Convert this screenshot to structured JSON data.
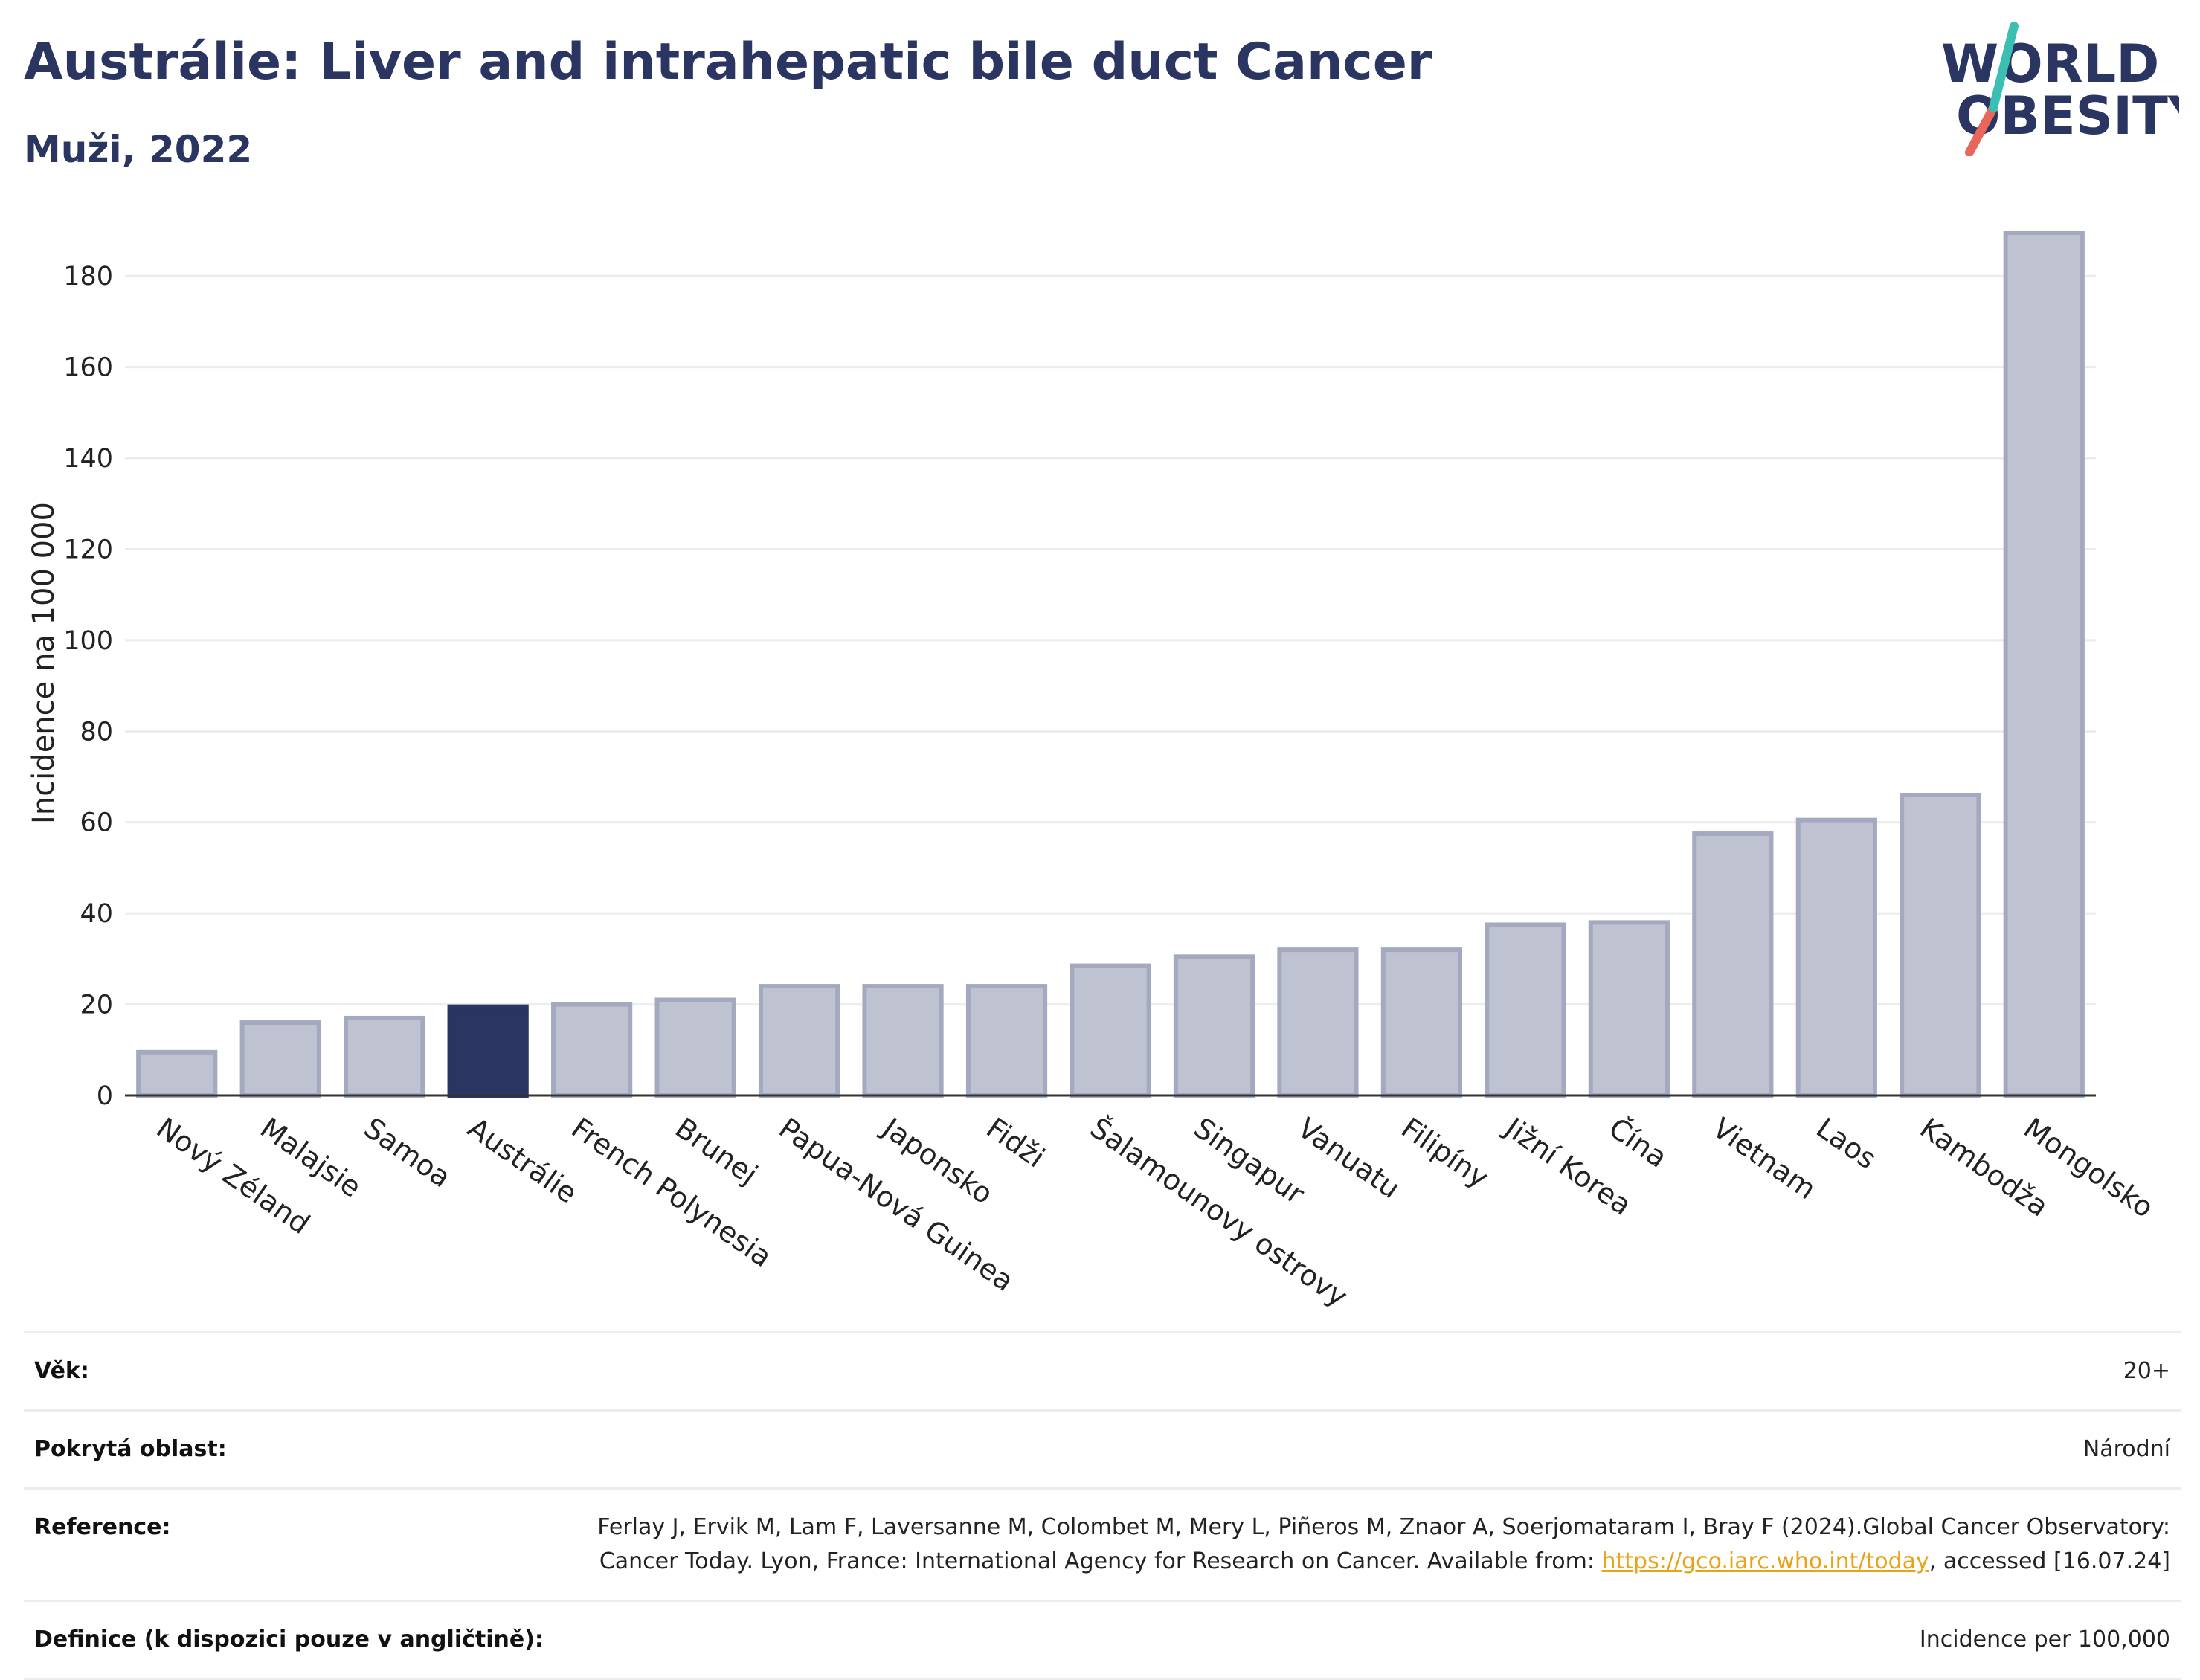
{
  "header": {
    "title": "Austrálie: Liver and intrahepatic bile duct Cancer",
    "subtitle": "Muži, 2022"
  },
  "logo": {
    "line1": "WORLD",
    "line2": "OBESITY",
    "accent_colors": [
      "#3bbfb2",
      "#e8675a"
    ]
  },
  "chart_data": {
    "type": "bar",
    "categories": [
      "Nový Zéland",
      "Malajsie",
      "Samoa",
      "Austrálie",
      "French Polynesia",
      "Brunej",
      "Papua-Nová Guinea",
      "Japonsko",
      "Fidži",
      "Šalamounovy ostrovy",
      "Singapur",
      "Vanuatu",
      "Filipíny",
      "Jižní Korea",
      "Čína",
      "Vietnam",
      "Laos",
      "Kambodža",
      "Mongolsko"
    ],
    "values": [
      9.5,
      16,
      17,
      19.5,
      20,
      21,
      24,
      24,
      24,
      28.5,
      30.5,
      32,
      32,
      37.5,
      38,
      57.5,
      60.5,
      66,
      189.5
    ],
    "highlight": "Austrálie",
    "ylabel": "Incidence na 100 000",
    "xlabel": "",
    "ylim": [
      0,
      190
    ],
    "yticks": [
      0,
      20,
      40,
      60,
      80,
      100,
      120,
      140,
      160,
      180
    ],
    "grid": true,
    "colors": {
      "bar": "#bfc3d1",
      "bar_edge": "#a4a9bf",
      "highlight": "#2a3561",
      "grid": "#ececec",
      "axis": "#333333"
    }
  },
  "info": {
    "age_label": "Věk:",
    "age_value": "20+",
    "coverage_label": "Pokrytá oblast:",
    "coverage_value": "Národní",
    "reference_label": "Reference:",
    "reference_text_1": "Ferlay J, Ervik M, Lam F, Laversanne M, Colombet M, Mery L, Piñeros M, Znaor A, Soerjomataram I, Bray F (2024).Global Cancer Observatory: Cancer Today. Lyon, France: International Agency for Research on Cancer. Available from: ",
    "reference_link": "https://gco.iarc.who.int/today",
    "reference_text_2": ", accessed [16.07.24]",
    "definition_label": "Definice (k dispozici pouze v angličtině):",
    "definition_value": "Incidence per 100,000"
  }
}
